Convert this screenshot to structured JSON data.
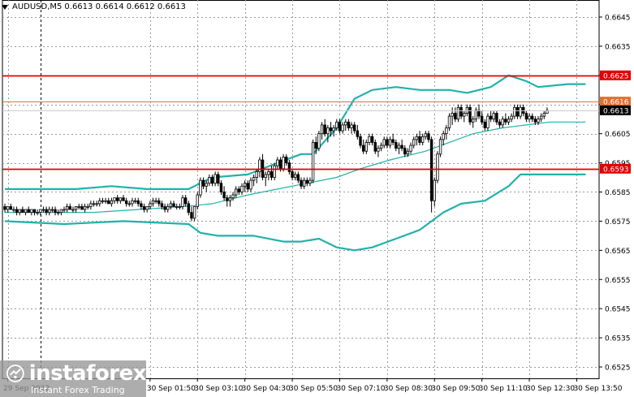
{
  "header": {
    "symbol": "AUDUSD,M5",
    "ohlc": "0.6613 0.6614 0.6612 0.6613"
  },
  "colors": {
    "bull": "#000000",
    "bear": "#000000",
    "band": "#20b2aa",
    "support": "#e00000",
    "current_line": "#e07030",
    "grid": "#9a9a9a"
  },
  "logo": {
    "name": "instaforex",
    "tagline": "Instant Forex Trading",
    "icon": "instaforex-logo-icon"
  },
  "chart_data": {
    "type": "candlestick",
    "symbol": "AUDUSD",
    "timeframe": "M5",
    "ylim": [
      0.652,
      0.665
    ],
    "y_ticks": [
      "0.6645",
      "0.6635",
      "0.6625",
      "0.6615",
      "0.6605",
      "0.6595",
      "0.6585",
      "0.6575",
      "0.6565",
      "0.6555",
      "0.6545",
      "0.6535",
      "0.6525"
    ],
    "x_labels": [
      "29 Sep 2022",
      "30 Sep 01:50",
      "30 Sep 03:10",
      "30 Sep 04:30",
      "30 Sep 05:50",
      "30 Sep 07:10",
      "30 Sep 08:30",
      "30 Sep 09:50",
      "30 Sep 11:10",
      "30 Sep 12:30",
      "30 Sep 13:50"
    ],
    "x_label_bars": [
      0,
      48,
      64,
      80,
      96,
      112,
      128,
      144,
      160,
      176,
      192
    ],
    "session_separator_bar": 12,
    "candles": [
      [
        0.658,
        0.6581,
        0.6578,
        0.6579
      ],
      [
        0.6579,
        0.658,
        0.6578,
        0.658
      ],
      [
        0.658,
        0.6581,
        0.6579,
        0.6579
      ],
      [
        0.6579,
        0.658,
        0.6578,
        0.6579
      ],
      [
        0.6579,
        0.658,
        0.6577,
        0.6578
      ],
      [
        0.6578,
        0.6579,
        0.6577,
        0.6579
      ],
      [
        0.6579,
        0.658,
        0.6578,
        0.6578
      ],
      [
        0.6578,
        0.6579,
        0.6577,
        0.6579
      ],
      [
        0.6579,
        0.658,
        0.6578,
        0.6578
      ],
      [
        0.6578,
        0.6579,
        0.6577,
        0.6579
      ],
      [
        0.6579,
        0.6579,
        0.6577,
        0.6578
      ],
      [
        0.6578,
        0.6579,
        0.6577,
        0.6578
      ],
      [
        0.6578,
        0.6579,
        0.6577,
        0.6579
      ],
      [
        0.6579,
        0.658,
        0.6578,
        0.6579
      ],
      [
        0.6579,
        0.658,
        0.6577,
        0.6578
      ],
      [
        0.6578,
        0.658,
        0.6577,
        0.6579
      ],
      [
        0.6579,
        0.658,
        0.6578,
        0.6579
      ],
      [
        0.6579,
        0.658,
        0.6577,
        0.6578
      ],
      [
        0.6578,
        0.6579,
        0.6577,
        0.6578
      ],
      [
        0.6578,
        0.6579,
        0.6577,
        0.6579
      ],
      [
        0.6579,
        0.658,
        0.6578,
        0.6579
      ],
      [
        0.6579,
        0.6581,
        0.6578,
        0.658
      ],
      [
        0.658,
        0.6581,
        0.6579,
        0.6579
      ],
      [
        0.6579,
        0.658,
        0.6578,
        0.6579
      ],
      [
        0.6579,
        0.658,
        0.6578,
        0.658
      ],
      [
        0.658,
        0.6581,
        0.6579,
        0.658
      ],
      [
        0.658,
        0.6581,
        0.6579,
        0.6579
      ],
      [
        0.6579,
        0.6581,
        0.6578,
        0.658
      ],
      [
        0.658,
        0.6581,
        0.6579,
        0.658
      ],
      [
        0.658,
        0.6582,
        0.6579,
        0.6581
      ],
      [
        0.6581,
        0.6582,
        0.658,
        0.6581
      ],
      [
        0.6581,
        0.6582,
        0.658,
        0.6581
      ],
      [
        0.6581,
        0.6583,
        0.658,
        0.6582
      ],
      [
        0.6582,
        0.6583,
        0.6581,
        0.6582
      ],
      [
        0.6582,
        0.6583,
        0.6581,
        0.6582
      ],
      [
        0.6582,
        0.6583,
        0.6581,
        0.6581
      ],
      [
        0.6581,
        0.6583,
        0.658,
        0.6582
      ],
      [
        0.6582,
        0.6583,
        0.6581,
        0.6583
      ],
      [
        0.6583,
        0.6584,
        0.6581,
        0.6582
      ],
      [
        0.6582,
        0.6583,
        0.6581,
        0.6583
      ],
      [
        0.6583,
        0.6584,
        0.6582,
        0.6582
      ],
      [
        0.6582,
        0.6583,
        0.658,
        0.6581
      ],
      [
        0.6581,
        0.6582,
        0.658,
        0.6581
      ],
      [
        0.6581,
        0.6583,
        0.658,
        0.6582
      ],
      [
        0.6582,
        0.6583,
        0.6581,
        0.6582
      ],
      [
        0.6582,
        0.6583,
        0.658,
        0.6581
      ],
      [
        0.6581,
        0.6582,
        0.6579,
        0.658
      ],
      [
        0.658,
        0.6581,
        0.6578,
        0.6579
      ],
      [
        0.6579,
        0.658,
        0.6578,
        0.658
      ],
      [
        0.658,
        0.6582,
        0.6579,
        0.6581
      ],
      [
        0.6581,
        0.6583,
        0.658,
        0.6582
      ],
      [
        0.6582,
        0.6583,
        0.6581,
        0.6582
      ],
      [
        0.6582,
        0.6583,
        0.658,
        0.6581
      ],
      [
        0.6581,
        0.6582,
        0.6579,
        0.658
      ],
      [
        0.658,
        0.6581,
        0.6578,
        0.6579
      ],
      [
        0.6579,
        0.6581,
        0.6578,
        0.658
      ],
      [
        0.658,
        0.6582,
        0.6579,
        0.6581
      ],
      [
        0.6581,
        0.6582,
        0.658,
        0.658
      ],
      [
        0.658,
        0.6581,
        0.6579,
        0.658
      ],
      [
        0.658,
        0.6581,
        0.6579,
        0.658
      ],
      [
        0.658,
        0.6584,
        0.6579,
        0.6583
      ],
      [
        0.6583,
        0.6584,
        0.658,
        0.6581
      ],
      [
        0.6581,
        0.6582,
        0.6577,
        0.6578
      ],
      [
        0.6578,
        0.658,
        0.6575,
        0.6576
      ],
      [
        0.6576,
        0.658,
        0.6575,
        0.658
      ],
      [
        0.658,
        0.6585,
        0.6579,
        0.6584
      ],
      [
        0.6584,
        0.659,
        0.6583,
        0.6589
      ],
      [
        0.6589,
        0.659,
        0.6586,
        0.6587
      ],
      [
        0.6587,
        0.6589,
        0.6585,
        0.6588
      ],
      [
        0.6588,
        0.6591,
        0.6587,
        0.659
      ],
      [
        0.659,
        0.6591,
        0.6587,
        0.6588
      ],
      [
        0.6588,
        0.6592,
        0.6587,
        0.6591
      ],
      [
        0.6591,
        0.6592,
        0.6587,
        0.6588
      ],
      [
        0.6588,
        0.6589,
        0.6584,
        0.6585
      ],
      [
        0.6585,
        0.6587,
        0.6582,
        0.6583
      ],
      [
        0.6583,
        0.6584,
        0.658,
        0.6582
      ],
      [
        0.6582,
        0.6584,
        0.658,
        0.6583
      ],
      [
        0.6583,
        0.6585,
        0.6582,
        0.6584
      ],
      [
        0.6584,
        0.6587,
        0.6583,
        0.6586
      ],
      [
        0.6586,
        0.6587,
        0.6584,
        0.6585
      ],
      [
        0.6585,
        0.6588,
        0.6584,
        0.6587
      ],
      [
        0.6587,
        0.6589,
        0.6585,
        0.6588
      ],
      [
        0.6588,
        0.6589,
        0.6585,
        0.6586
      ],
      [
        0.6586,
        0.659,
        0.6585,
        0.6589
      ],
      [
        0.6589,
        0.6591,
        0.6587,
        0.659
      ],
      [
        0.659,
        0.6593,
        0.6588,
        0.6592
      ],
      [
        0.6592,
        0.6597,
        0.659,
        0.6596
      ],
      [
        0.6596,
        0.6598,
        0.6589,
        0.659
      ],
      [
        0.659,
        0.6592,
        0.6587,
        0.6591
      ],
      [
        0.6591,
        0.6593,
        0.6589,
        0.6592
      ],
      [
        0.6592,
        0.6594,
        0.6589,
        0.659
      ],
      [
        0.659,
        0.6595,
        0.6589,
        0.6594
      ],
      [
        0.6594,
        0.6597,
        0.6593,
        0.6596
      ],
      [
        0.6596,
        0.6597,
        0.6592,
        0.6593
      ],
      [
        0.6593,
        0.6598,
        0.6592,
        0.6597
      ],
      [
        0.6597,
        0.6598,
        0.6594,
        0.6595
      ],
      [
        0.6595,
        0.6596,
        0.6591,
        0.6592
      ],
      [
        0.6592,
        0.6593,
        0.6589,
        0.659
      ],
      [
        0.659,
        0.6592,
        0.6589,
        0.6591
      ],
      [
        0.6591,
        0.6592,
        0.6588,
        0.6589
      ],
      [
        0.6589,
        0.659,
        0.6586,
        0.6587
      ],
      [
        0.6587,
        0.659,
        0.6586,
        0.6589
      ],
      [
        0.6589,
        0.659,
        0.6587,
        0.6588
      ],
      [
        0.6588,
        0.659,
        0.6587,
        0.6589
      ],
      [
        0.6589,
        0.6603,
        0.6588,
        0.6602
      ],
      [
        0.6602,
        0.6604,
        0.6598,
        0.66
      ],
      [
        0.66,
        0.6606,
        0.6599,
        0.6605
      ],
      [
        0.6605,
        0.6609,
        0.6603,
        0.6608
      ],
      [
        0.6608,
        0.661,
        0.6604,
        0.6605
      ],
      [
        0.6605,
        0.6608,
        0.6602,
        0.6607
      ],
      [
        0.6607,
        0.6609,
        0.6604,
        0.6606
      ],
      [
        0.6606,
        0.6608,
        0.6604,
        0.6607
      ],
      [
        0.6607,
        0.661,
        0.6606,
        0.6609
      ],
      [
        0.6609,
        0.661,
        0.6605,
        0.6606
      ],
      [
        0.6606,
        0.6609,
        0.6605,
        0.6608
      ],
      [
        0.6608,
        0.661,
        0.6606,
        0.6609
      ],
      [
        0.6609,
        0.661,
        0.6606,
        0.6607
      ],
      [
        0.6607,
        0.6609,
        0.6605,
        0.6608
      ],
      [
        0.6608,
        0.6609,
        0.6605,
        0.6606
      ],
      [
        0.6606,
        0.6608,
        0.6603,
        0.6604
      ],
      [
        0.6604,
        0.6605,
        0.66,
        0.6601
      ],
      [
        0.6601,
        0.6603,
        0.6598,
        0.6599
      ],
      [
        0.6599,
        0.6603,
        0.6598,
        0.6602
      ],
      [
        0.6602,
        0.6605,
        0.6601,
        0.6604
      ],
      [
        0.6604,
        0.6605,
        0.6601,
        0.6602
      ],
      [
        0.6602,
        0.6603,
        0.6598,
        0.6599
      ],
      [
        0.6599,
        0.6601,
        0.6597,
        0.66
      ],
      [
        0.66,
        0.6602,
        0.6599,
        0.6601
      ],
      [
        0.6601,
        0.6604,
        0.66,
        0.6603
      ],
      [
        0.6603,
        0.6604,
        0.66,
        0.6601
      ],
      [
        0.6601,
        0.6604,
        0.66,
        0.6603
      ],
      [
        0.6603,
        0.6605,
        0.6601,
        0.6602
      ],
      [
        0.6602,
        0.6603,
        0.6599,
        0.66
      ],
      [
        0.66,
        0.6602,
        0.6598,
        0.6601
      ],
      [
        0.6601,
        0.6603,
        0.6599,
        0.66
      ],
      [
        0.66,
        0.6601,
        0.6597,
        0.6598
      ],
      [
        0.6598,
        0.66,
        0.6597,
        0.6599
      ],
      [
        0.6599,
        0.6602,
        0.6598,
        0.6601
      ],
      [
        0.6601,
        0.6604,
        0.66,
        0.6603
      ],
      [
        0.6603,
        0.6605,
        0.6601,
        0.6604
      ],
      [
        0.6604,
        0.6606,
        0.6601,
        0.6602
      ],
      [
        0.6602,
        0.6605,
        0.6601,
        0.6604
      ],
      [
        0.6604,
        0.6606,
        0.6603,
        0.6605
      ],
      [
        0.6605,
        0.6606,
        0.6602,
        0.6603
      ],
      [
        0.6603,
        0.6604,
        0.6578,
        0.6582
      ],
      [
        0.6582,
        0.659,
        0.658,
        0.6589
      ],
      [
        0.6589,
        0.6599,
        0.6588,
        0.6598
      ],
      [
        0.6598,
        0.6604,
        0.6597,
        0.6603
      ],
      [
        0.6603,
        0.6606,
        0.6601,
        0.6605
      ],
      [
        0.6605,
        0.6608,
        0.6603,
        0.6607
      ],
      [
        0.6607,
        0.6612,
        0.6606,
        0.6611
      ],
      [
        0.6611,
        0.6614,
        0.6608,
        0.6612
      ],
      [
        0.6612,
        0.6614,
        0.6609,
        0.661
      ],
      [
        0.661,
        0.6615,
        0.6609,
        0.6614
      ],
      [
        0.6614,
        0.6615,
        0.661,
        0.6611
      ],
      [
        0.6611,
        0.6613,
        0.6609,
        0.6612
      ],
      [
        0.6612,
        0.6615,
        0.6611,
        0.6614
      ],
      [
        0.6614,
        0.6615,
        0.6608,
        0.6609
      ],
      [
        0.6609,
        0.6611,
        0.6607,
        0.661
      ],
      [
        0.661,
        0.6614,
        0.6609,
        0.6613
      ],
      [
        0.6613,
        0.6615,
        0.661,
        0.6611
      ],
      [
        0.6611,
        0.6613,
        0.6608,
        0.6609
      ],
      [
        0.6609,
        0.661,
        0.6606,
        0.6607
      ],
      [
        0.6607,
        0.6612,
        0.6606,
        0.6611
      ],
      [
        0.6611,
        0.6613,
        0.6609,
        0.661
      ],
      [
        0.661,
        0.6613,
        0.6609,
        0.6612
      ],
      [
        0.6612,
        0.6613,
        0.6608,
        0.6609
      ],
      [
        0.6609,
        0.661,
        0.6607,
        0.6608
      ],
      [
        0.6608,
        0.6611,
        0.6607,
        0.661
      ],
      [
        0.661,
        0.6612,
        0.6608,
        0.6609
      ],
      [
        0.6609,
        0.6611,
        0.6608,
        0.661
      ],
      [
        0.661,
        0.6612,
        0.6609,
        0.6611
      ],
      [
        0.6611,
        0.6615,
        0.661,
        0.6614
      ],
      [
        0.6614,
        0.6615,
        0.661,
        0.6611
      ],
      [
        0.6611,
        0.6615,
        0.661,
        0.6614
      ],
      [
        0.6614,
        0.6615,
        0.6611,
        0.6612
      ],
      [
        0.6612,
        0.6613,
        0.6609,
        0.661
      ],
      [
        0.661,
        0.6612,
        0.6609,
        0.6611
      ],
      [
        0.6611,
        0.6612,
        0.6609,
        0.661
      ],
      [
        0.661,
        0.6611,
        0.6608,
        0.6609
      ],
      [
        0.6609,
        0.6611,
        0.6608,
        0.661
      ],
      [
        0.661,
        0.6612,
        0.6609,
        0.6611
      ],
      [
        0.6611,
        0.6613,
        0.661,
        0.6612
      ],
      [
        0.6612,
        0.6614,
        0.6612,
        0.6613
      ]
    ],
    "bands": {
      "upper": [
        [
          0,
          0.6586
        ],
        [
          12,
          0.6586
        ],
        [
          24,
          0.6586
        ],
        [
          36,
          0.6587
        ],
        [
          48,
          0.6586
        ],
        [
          62,
          0.6586
        ],
        [
          70,
          0.659
        ],
        [
          82,
          0.6591
        ],
        [
          92,
          0.6595
        ],
        [
          100,
          0.6598
        ],
        [
          104,
          0.6598
        ],
        [
          112,
          0.6607
        ],
        [
          118,
          0.6617
        ],
        [
          124,
          0.662
        ],
        [
          132,
          0.6621
        ],
        [
          140,
          0.662
        ],
        [
          150,
          0.662
        ],
        [
          156,
          0.6619
        ],
        [
          164,
          0.6621
        ],
        [
          170,
          0.6625
        ],
        [
          176,
          0.6623
        ],
        [
          180,
          0.6621
        ],
        [
          190,
          0.6622
        ],
        [
          196,
          0.6622
        ]
      ],
      "middle": [
        [
          0,
          0.6578
        ],
        [
          30,
          0.6578
        ],
        [
          60,
          0.658
        ],
        [
          70,
          0.6581
        ],
        [
          82,
          0.6584
        ],
        [
          92,
          0.6586
        ],
        [
          102,
          0.6588
        ],
        [
          112,
          0.659
        ],
        [
          120,
          0.6593
        ],
        [
          130,
          0.6596
        ],
        [
          142,
          0.6599
        ],
        [
          150,
          0.6602
        ],
        [
          158,
          0.6605
        ],
        [
          168,
          0.6607
        ],
        [
          176,
          0.6608
        ],
        [
          184,
          0.6609
        ],
        [
          196,
          0.6609
        ]
      ],
      "lower": [
        [
          0,
          0.6575
        ],
        [
          20,
          0.6574
        ],
        [
          40,
          0.6575
        ],
        [
          62,
          0.6574
        ],
        [
          66,
          0.6571
        ],
        [
          72,
          0.657
        ],
        [
          84,
          0.657
        ],
        [
          94,
          0.6568
        ],
        [
          100,
          0.6568
        ],
        [
          106,
          0.6569
        ],
        [
          112,
          0.6566
        ],
        [
          118,
          0.6565
        ],
        [
          124,
          0.6566
        ],
        [
          132,
          0.6569
        ],
        [
          140,
          0.6572
        ],
        [
          148,
          0.6578
        ],
        [
          154,
          0.6581
        ],
        [
          162,
          0.6582
        ],
        [
          170,
          0.6587
        ],
        [
          174,
          0.6591
        ],
        [
          180,
          0.6591
        ],
        [
          190,
          0.6591
        ],
        [
          196,
          0.6591
        ]
      ]
    },
    "levels": [
      {
        "price": 0.6625,
        "label": "0.6625",
        "color": "#e00000"
      },
      {
        "price": 0.6593,
        "label": "0.6593",
        "color": "#e00000"
      }
    ],
    "price_line": {
      "price": 0.6616,
      "label": "0.6616",
      "color": "#e07030"
    },
    "current_price": {
      "price": 0.6613,
      "label": "0.6613"
    }
  }
}
